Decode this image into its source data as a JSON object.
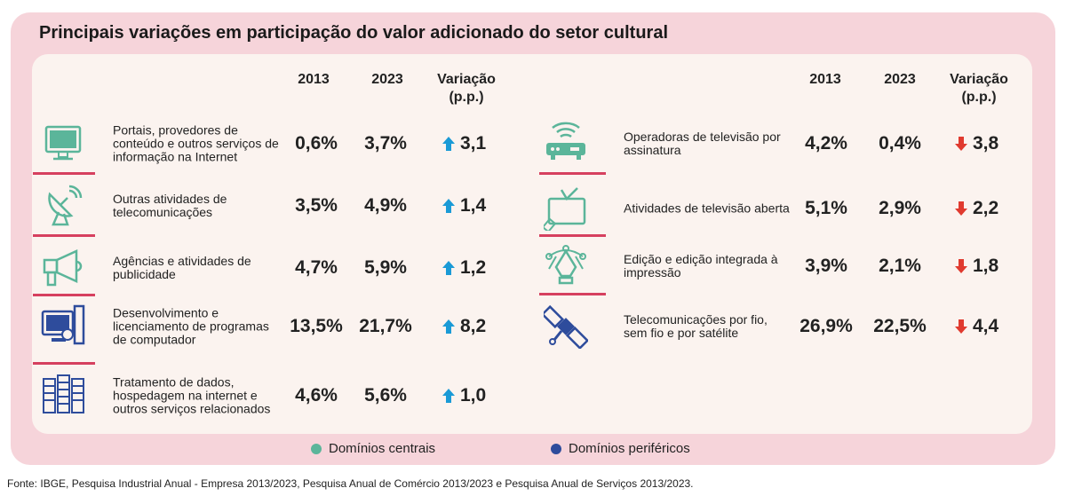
{
  "title": "Principais variações em participação do valor adicionado do setor cultural",
  "headers": {
    "y1": "2013",
    "y2": "2023",
    "var": "Variação\n(p.p.)"
  },
  "colors": {
    "central": "#5bb59a",
    "peripheral": "#2e4c9c",
    "up": "#1a9ad6",
    "down": "#e03a2f",
    "separator": "#d6405f"
  },
  "left": [
    {
      "label": "Portais, provedores de conteúdo e outros serviços de informação na Internet",
      "v2013": "0,6%",
      "v2023": "3,7%",
      "variation": "3,1",
      "direction": "up",
      "icon": "monitor-icon",
      "domain": "central"
    },
    {
      "label": "Outras atividades de telecomunicações",
      "v2013": "3,5%",
      "v2023": "4,9%",
      "variation": "1,4",
      "direction": "up",
      "icon": "satellite-dish-icon",
      "domain": "central"
    },
    {
      "label": "Agências e atividades de publicidade",
      "v2013": "4,7%",
      "v2023": "5,9%",
      "variation": "1,2",
      "direction": "up",
      "icon": "megaphone-icon",
      "domain": "central"
    },
    {
      "label": "Desenvolvimento e licenciamento de programas de computador",
      "v2013": "13,5%",
      "v2023": "21,7%",
      "variation": "8,2",
      "direction": "up",
      "icon": "computer-icon",
      "domain": "peripheral"
    },
    {
      "label": "Tratamento de dados, hospedagem na internet e outros serviços relacionados",
      "v2013": "4,6%",
      "v2023": "5,6%",
      "variation": "1,0",
      "direction": "up",
      "icon": "server-icon",
      "domain": "peripheral"
    }
  ],
  "right": [
    {
      "label": "Operadoras de televisão por assinatura",
      "v2013": "4,2%",
      "v2023": "0,4%",
      "variation": "3,8",
      "direction": "down",
      "icon": "router-icon",
      "domain": "central"
    },
    {
      "label": "Atividades de televisão aberta",
      "v2013": "5,1%",
      "v2023": "2,9%",
      "variation": "2,2",
      "direction": "down",
      "icon": "tv-icon",
      "domain": "central"
    },
    {
      "label": "Edição e edição integrada à impressão",
      "v2013": "3,9%",
      "v2023": "2,1%",
      "variation": "1,8",
      "direction": "down",
      "icon": "pen-tool-icon",
      "domain": "central"
    },
    {
      "label": "Telecomunicações por fio, sem fio e por satélite",
      "v2013": "26,9%",
      "v2023": "22,5%",
      "variation": "4,4",
      "direction": "down",
      "icon": "satellite-icon",
      "domain": "peripheral"
    }
  ],
  "legend": {
    "central": "Domínios centrais",
    "peripheral": "Domínios periféricos"
  },
  "source": "Fonte: IBGE, Pesquisa Industrial Anual - Empresa 2013/2023, Pesquisa Anual de Comércio 2013/2023 e Pesquisa Anual de Serviços 2013/2023."
}
